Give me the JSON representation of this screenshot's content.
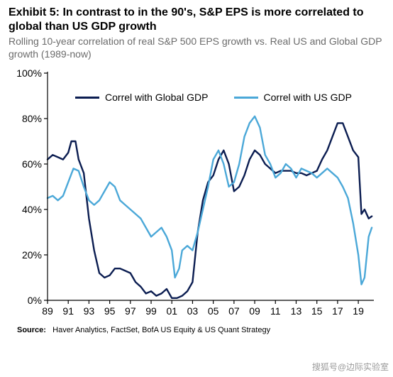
{
  "title": "Exhibit 5: In contrast to in the 90's, S&P EPS is more correlated to global than US GDP growth",
  "subtitle": "Rolling 10-year correlation of real S&P 500 EPS growth vs. Real US and Global GDP growth (1989-now)",
  "source_label": "Source:",
  "source_text": "Haver Analytics, FactSet, BofA US Equity & US Quant Strategy",
  "watermark": "搜狐号@边际实验室",
  "chart": {
    "type": "line",
    "background_color": "#ffffff",
    "axis_color": "#000000",
    "axis_width": 1.2,
    "xlim": [
      1989,
      2020.5
    ],
    "ylim": [
      0,
      100
    ],
    "ytick_step": 20,
    "ytick_format_suffix": "%",
    "xticks": [
      89,
      91,
      93,
      95,
      97,
      99,
      "01",
      "03",
      "05",
      "07",
      "09",
      11,
      13,
      15,
      17,
      19
    ],
    "xtick_years": [
      1989,
      1991,
      1993,
      1995,
      1997,
      1999,
      2001,
      2003,
      2005,
      2007,
      2009,
      2011,
      2013,
      2015,
      2017,
      2019
    ],
    "label_fontsize": 14,
    "legend": {
      "items": [
        {
          "label": "Correl with Global GDP",
          "color": "#0b1d51"
        },
        {
          "label": "Correl with US GDP",
          "color": "#4ba8d8"
        }
      ]
    },
    "series": [
      {
        "name": "global",
        "color": "#0b1d51",
        "width": 2.4,
        "points": [
          [
            1989,
            62
          ],
          [
            1989.5,
            64
          ],
          [
            1990,
            63
          ],
          [
            1990.5,
            62
          ],
          [
            1991,
            65
          ],
          [
            1991.3,
            70
          ],
          [
            1991.7,
            70
          ],
          [
            1992,
            62
          ],
          [
            1992.5,
            56
          ],
          [
            1993,
            36
          ],
          [
            1993.5,
            22
          ],
          [
            1994,
            12
          ],
          [
            1994.5,
            10
          ],
          [
            1995,
            11
          ],
          [
            1995.5,
            14
          ],
          [
            1996,
            14
          ],
          [
            1996.5,
            13
          ],
          [
            1997,
            12
          ],
          [
            1997.5,
            8
          ],
          [
            1998,
            6
          ],
          [
            1998.5,
            3
          ],
          [
            1999,
            4
          ],
          [
            1999.5,
            2
          ],
          [
            2000,
            3
          ],
          [
            2000.5,
            5
          ],
          [
            2001,
            1
          ],
          [
            2001.5,
            1
          ],
          [
            2002,
            2
          ],
          [
            2002.5,
            4
          ],
          [
            2003,
            8
          ],
          [
            2003.5,
            30
          ],
          [
            2004,
            44
          ],
          [
            2004.5,
            52
          ],
          [
            2005,
            55
          ],
          [
            2005.5,
            62
          ],
          [
            2006,
            66
          ],
          [
            2006.5,
            60
          ],
          [
            2007,
            48
          ],
          [
            2007.5,
            50
          ],
          [
            2008,
            55
          ],
          [
            2008.5,
            62
          ],
          [
            2009,
            66
          ],
          [
            2009.5,
            64
          ],
          [
            2010,
            60
          ],
          [
            2010.5,
            58
          ],
          [
            2011,
            56
          ],
          [
            2011.5,
            57
          ],
          [
            2012,
            57
          ],
          [
            2012.5,
            57
          ],
          [
            2013,
            56
          ],
          [
            2013.5,
            56
          ],
          [
            2014,
            55
          ],
          [
            2014.5,
            56
          ],
          [
            2015,
            57
          ],
          [
            2015.5,
            62
          ],
          [
            2016,
            66
          ],
          [
            2016.5,
            72
          ],
          [
            2017,
            78
          ],
          [
            2017.5,
            78
          ],
          [
            2018,
            72
          ],
          [
            2018.5,
            66
          ],
          [
            2019,
            63
          ],
          [
            2019.3,
            38
          ],
          [
            2019.6,
            40
          ],
          [
            2020,
            36
          ],
          [
            2020.3,
            37
          ]
        ]
      },
      {
        "name": "us",
        "color": "#4ba8d8",
        "width": 2.4,
        "points": [
          [
            1989,
            45
          ],
          [
            1989.5,
            46
          ],
          [
            1990,
            44
          ],
          [
            1990.5,
            46
          ],
          [
            1991,
            52
          ],
          [
            1991.5,
            58
          ],
          [
            1992,
            57
          ],
          [
            1992.5,
            50
          ],
          [
            1993,
            44
          ],
          [
            1993.5,
            42
          ],
          [
            1994,
            44
          ],
          [
            1994.5,
            48
          ],
          [
            1995,
            52
          ],
          [
            1995.5,
            50
          ],
          [
            1996,
            44
          ],
          [
            1996.5,
            42
          ],
          [
            1997,
            40
          ],
          [
            1997.5,
            38
          ],
          [
            1998,
            36
          ],
          [
            1998.5,
            32
          ],
          [
            1999,
            28
          ],
          [
            1999.5,
            30
          ],
          [
            2000,
            32
          ],
          [
            2000.5,
            28
          ],
          [
            2001,
            22
          ],
          [
            2001.3,
            10
          ],
          [
            2001.7,
            14
          ],
          [
            2002,
            22
          ],
          [
            2002.5,
            24
          ],
          [
            2003,
            22
          ],
          [
            2003.5,
            30
          ],
          [
            2004,
            40
          ],
          [
            2004.5,
            50
          ],
          [
            2005,
            62
          ],
          [
            2005.5,
            66
          ],
          [
            2006,
            60
          ],
          [
            2006.5,
            50
          ],
          [
            2007,
            52
          ],
          [
            2007.5,
            60
          ],
          [
            2008,
            72
          ],
          [
            2008.5,
            78
          ],
          [
            2009,
            81
          ],
          [
            2009.5,
            76
          ],
          [
            2010,
            64
          ],
          [
            2010.5,
            60
          ],
          [
            2011,
            54
          ],
          [
            2011.5,
            56
          ],
          [
            2012,
            60
          ],
          [
            2012.5,
            58
          ],
          [
            2013,
            54
          ],
          [
            2013.5,
            58
          ],
          [
            2014,
            57
          ],
          [
            2014.5,
            56
          ],
          [
            2015,
            54
          ],
          [
            2015.5,
            56
          ],
          [
            2016,
            58
          ],
          [
            2016.5,
            56
          ],
          [
            2017,
            54
          ],
          [
            2017.5,
            50
          ],
          [
            2018,
            45
          ],
          [
            2018.5,
            34
          ],
          [
            2019,
            20
          ],
          [
            2019.3,
            7
          ],
          [
            2019.6,
            10
          ],
          [
            2020,
            28
          ],
          [
            2020.3,
            32
          ]
        ]
      }
    ]
  }
}
